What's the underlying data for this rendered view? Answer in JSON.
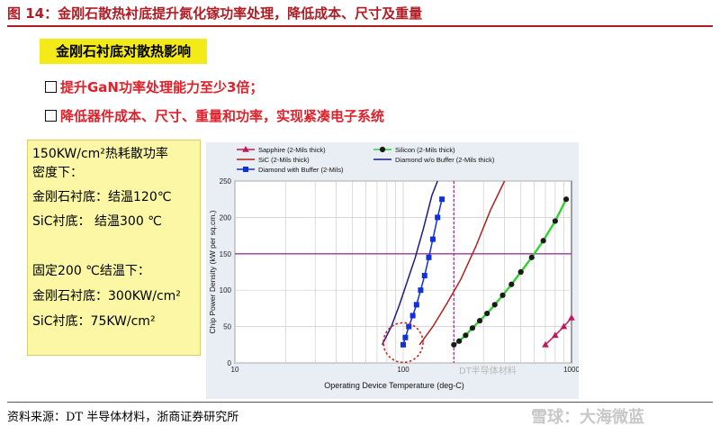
{
  "figure_title": "图 14：金刚石散热衬底提升氮化镓功率处理，降低成本、尺寸及重量",
  "slide_subtitle": "金刚石衬底对散热影响",
  "bullets": [
    "提升GaN功率处理能力至少3倍；",
    "降低器件成本、尺寸、重量和功率，实现紧凑电子系统"
  ],
  "summary_box": {
    "line1": "150KW/cm²热耗散功率",
    "line2": "密度下：",
    "line3": "金刚石衬底：结温120℃",
    "line4": "SiC衬底：  结温300 ℃",
    "line5": "固定200 ℃结温下：",
    "line6": "金刚石衬底：300KW/cm²",
    "line7": "SiC衬底：75KW/cm²"
  },
  "source": "资料来源：DT 半导体材料，浙商证券研究所",
  "watermark": "雪球：大海微蓝",
  "watermark_small": "DT半导体材料",
  "colors": {
    "title_red": "#b01c24",
    "highlight_yellow": "#f4ea18",
    "bullet_red": "#e0202a",
    "box_yellow": "#fbf7a4"
  },
  "chart_data": {
    "type": "line",
    "xlabel": "Operating Device Temperature (deg-C)",
    "ylabel": "Chip Power Density (kW per sq.cm.)",
    "x_scale": "log",
    "xlim": [
      10,
      1000
    ],
    "ylim": [
      0,
      250
    ],
    "x_ticks": [
      10,
      100,
      1000
    ],
    "y_ticks": [
      0,
      50,
      100,
      150,
      200,
      250
    ],
    "reference_lines": {
      "horizontal_y": 150,
      "vertical_x": 200
    },
    "legend_position": "top",
    "series": [
      {
        "name": "Sapphire (2-Mils thick)",
        "color": "#c0185a",
        "marker": "triangle",
        "x": [
          700,
          800,
          900,
          1000
        ],
        "y": [
          25,
          38,
          50,
          62
        ]
      },
      {
        "name": "Silicon (2-Mils thick)",
        "color": "#1a1a1a",
        "marker": "circle",
        "line_color": "#30d030",
        "x": [
          200,
          215,
          235,
          258,
          285,
          315,
          350,
          390,
          440,
          500,
          580,
          680,
          800,
          930
        ],
        "y": [
          25,
          30,
          38,
          48,
          58,
          68,
          80,
          93,
          108,
          125,
          145,
          168,
          195,
          225
        ]
      },
      {
        "name": "SiC (2-Mils thick)",
        "color": "#b0201c",
        "marker": "none",
        "x": [
          125,
          150,
          180,
          220,
          270,
          330,
          400
        ],
        "y": [
          25,
          50,
          80,
          115,
          160,
          210,
          250
        ]
      },
      {
        "name": "Diamond w/o Buffer (2-Mils thick)",
        "color": "#1a1a8a",
        "marker": "none",
        "x": [
          75,
          85,
          95,
          105,
          118,
          132,
          148,
          160
        ],
        "y": [
          25,
          50,
          80,
          110,
          145,
          185,
          230,
          250
        ]
      },
      {
        "name": "Diamond with Buffer (2-Mils)",
        "color": "#1030d8",
        "marker": "square",
        "x": [
          100,
          103,
          108,
          114,
          120,
          127,
          134,
          142,
          150,
          160,
          170
        ],
        "y": [
          25,
          35,
          50,
          65,
          80,
          100,
          120,
          145,
          170,
          200,
          225
        ]
      }
    ],
    "annotation": "dashed circle around low-temperature diamond points"
  }
}
